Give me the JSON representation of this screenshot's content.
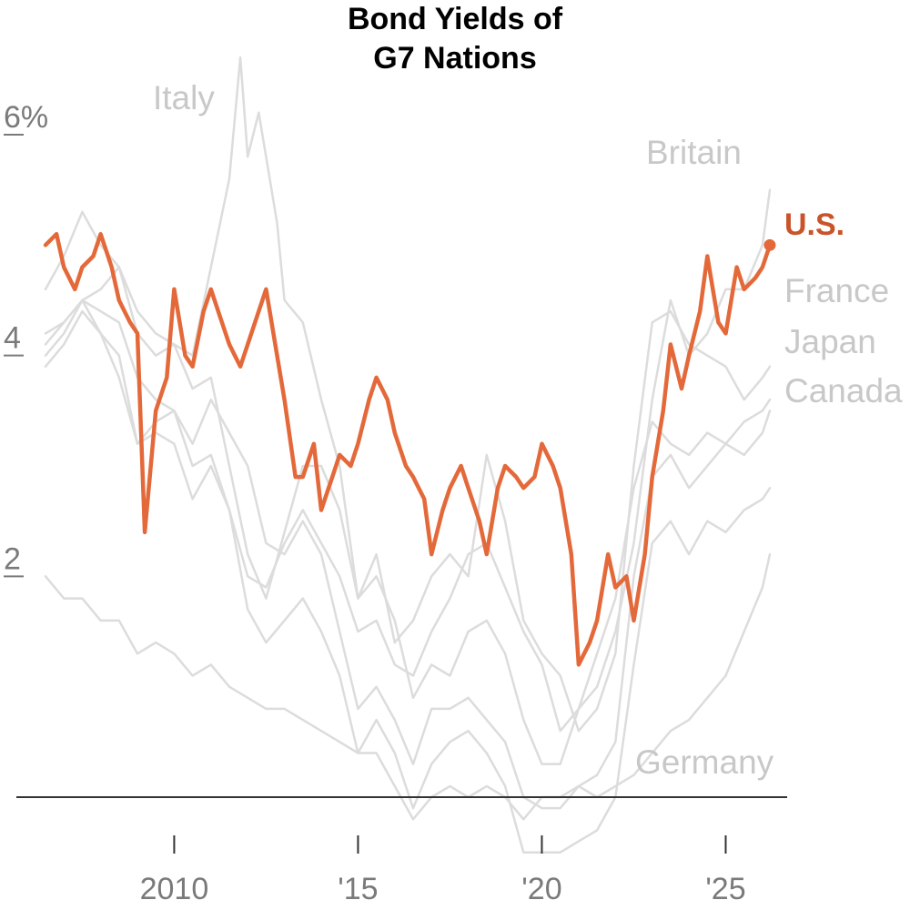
{
  "chart_data": {
    "type": "line",
    "title_lines": [
      "Bond Yields of",
      "G7 Nations"
    ],
    "xlabel": "",
    "ylabel": "",
    "x_range": [
      2006.5,
      2026.3
    ],
    "ylim": [
      -0.6,
      6.9
    ],
    "y_ticks": [
      {
        "value": 2,
        "label": "2"
      },
      {
        "value": 4,
        "label": "4"
      },
      {
        "value": 6,
        "label": "6%"
      }
    ],
    "x_ticks": [
      {
        "value": 2010,
        "label": "2010"
      },
      {
        "value": 2015,
        "label": "'15"
      },
      {
        "value": 2020,
        "label": "'20"
      },
      {
        "value": 2025,
        "label": "'25"
      }
    ],
    "baseline_value": 0,
    "grid": false,
    "legend": "direct labels at series ends",
    "colors": {
      "highlight": "#e4693a",
      "highlight_text": "#c9542a",
      "others": "#dcdcdc",
      "others_text": "#c8c8c8",
      "axis": "#333333"
    },
    "series": [
      {
        "name": "U.S.",
        "highlight": true,
        "x": [
          2006.5,
          2006.8,
          2007.0,
          2007.3,
          2007.5,
          2007.8,
          2008.0,
          2008.3,
          2008.5,
          2008.8,
          2009.0,
          2009.2,
          2009.5,
          2009.8,
          2010.0,
          2010.3,
          2010.5,
          2010.8,
          2011.0,
          2011.3,
          2011.5,
          2011.8,
          2012.0,
          2012.3,
          2012.5,
          2012.8,
          2013.0,
          2013.3,
          2013.5,
          2013.8,
          2014.0,
          2014.3,
          2014.5,
          2014.8,
          2015.0,
          2015.3,
          2015.5,
          2015.8,
          2016.0,
          2016.3,
          2016.5,
          2016.8,
          2017.0,
          2017.3,
          2017.5,
          2017.8,
          2018.0,
          2018.3,
          2018.5,
          2018.8,
          2019.0,
          2019.3,
          2019.5,
          2019.8,
          2020.0,
          2020.3,
          2020.5,
          2020.8,
          2021.0,
          2021.3,
          2021.5,
          2021.8,
          2022.0,
          2022.3,
          2022.5,
          2022.8,
          2023.0,
          2023.3,
          2023.5,
          2023.8,
          2024.0,
          2024.3,
          2024.5,
          2024.8,
          2025.0,
          2025.3,
          2025.5,
          2025.8,
          2026.0,
          2026.2
        ],
        "values": [
          5.0,
          5.1,
          4.8,
          4.6,
          4.8,
          4.9,
          5.1,
          4.8,
          4.5,
          4.3,
          4.2,
          2.4,
          3.5,
          3.8,
          4.6,
          4.0,
          3.9,
          4.4,
          4.6,
          4.3,
          4.1,
          3.9,
          4.1,
          4.4,
          4.6,
          4.0,
          3.6,
          2.9,
          2.9,
          3.2,
          2.6,
          2.9,
          3.1,
          3.0,
          3.2,
          3.6,
          3.8,
          3.6,
          3.3,
          3.0,
          2.9,
          2.7,
          2.2,
          2.6,
          2.8,
          3.0,
          2.8,
          2.5,
          2.2,
          2.8,
          3.0,
          2.9,
          2.8,
          2.9,
          3.2,
          3.0,
          2.8,
          2.2,
          1.2,
          1.4,
          1.6,
          2.2,
          1.9,
          2.0,
          1.6,
          2.2,
          2.9,
          3.5,
          4.1,
          3.7,
          4.0,
          4.4,
          4.9,
          4.3,
          4.2,
          4.8,
          4.6,
          4.7,
          4.8,
          5.0
        ]
      },
      {
        "name": "Italy",
        "highlight": false,
        "x": [
          2006.5,
          2007.0,
          2007.5,
          2008.0,
          2008.5,
          2009.0,
          2009.5,
          2010.0,
          2010.5,
          2011.0,
          2011.5,
          2011.8,
          2012.0,
          2012.3,
          2012.5,
          2012.8,
          2013.0,
          2013.5,
          2014.0,
          2014.5,
          2015.0,
          2015.5,
          2016.0,
          2016.5,
          2017.0,
          2017.5,
          2018.0,
          2018.5,
          2019.0,
          2019.5,
          2020.0,
          2020.5,
          2021.0,
          2021.5,
          2022.0,
          2022.5,
          2023.0,
          2023.5,
          2024.0,
          2024.5,
          2025.0,
          2025.5,
          2026.0,
          2026.2
        ],
        "values": [
          4.1,
          4.3,
          4.5,
          4.6,
          4.8,
          4.4,
          4.2,
          4.1,
          4.0,
          4.8,
          5.6,
          6.7,
          5.8,
          6.2,
          5.8,
          5.2,
          4.5,
          4.3,
          3.6,
          3.0,
          1.8,
          2.2,
          1.4,
          1.6,
          2.0,
          2.2,
          2.0,
          3.1,
          2.5,
          1.6,
          1.3,
          1.1,
          0.6,
          0.8,
          1.3,
          3.0,
          4.3,
          4.4,
          4.1,
          4.0,
          3.9,
          3.6,
          3.8,
          3.9
        ]
      },
      {
        "name": "Britain",
        "highlight": false,
        "x": [
          2006.5,
          2007.0,
          2007.5,
          2008.0,
          2008.5,
          2009.0,
          2009.5,
          2010.0,
          2010.5,
          2011.0,
          2011.5,
          2012.0,
          2012.5,
          2013.0,
          2013.5,
          2014.0,
          2014.5,
          2015.0,
          2015.5,
          2016.0,
          2016.5,
          2017.0,
          2017.5,
          2018.0,
          2018.5,
          2019.0,
          2019.5,
          2020.0,
          2020.5,
          2021.0,
          2021.5,
          2022.0,
          2022.5,
          2023.0,
          2023.5,
          2024.0,
          2024.5,
          2025.0,
          2025.5,
          2026.0,
          2026.2
        ],
        "values": [
          4.6,
          4.9,
          5.3,
          5.0,
          4.8,
          4.2,
          4.0,
          4.1,
          3.7,
          3.8,
          3.0,
          2.2,
          1.8,
          2.4,
          3.0,
          3.0,
          2.6,
          1.8,
          2.0,
          1.6,
          0.9,
          1.2,
          1.1,
          1.5,
          1.6,
          1.3,
          0.7,
          0.3,
          0.3,
          0.8,
          1.0,
          1.5,
          2.3,
          3.6,
          4.5,
          4.0,
          4.2,
          4.6,
          4.6,
          5.0,
          5.5
        ]
      },
      {
        "name": "France",
        "highlight": false,
        "x": [
          2006.5,
          2007.0,
          2007.5,
          2008.0,
          2008.5,
          2009.0,
          2009.5,
          2010.0,
          2010.5,
          2011.0,
          2011.5,
          2012.0,
          2012.5,
          2013.0,
          2013.5,
          2014.0,
          2014.5,
          2015.0,
          2015.5,
          2016.0,
          2016.5,
          2017.0,
          2017.5,
          2018.0,
          2018.5,
          2019.0,
          2019.5,
          2020.0,
          2020.5,
          2021.0,
          2021.5,
          2022.0,
          2022.5,
          2023.0,
          2023.5,
          2024.0,
          2024.5,
          2025.0,
          2025.5,
          2026.0,
          2026.2
        ],
        "values": [
          4.0,
          4.2,
          4.5,
          4.4,
          4.3,
          3.8,
          3.6,
          3.5,
          3.2,
          3.6,
          3.3,
          3.0,
          2.3,
          2.2,
          2.5,
          2.2,
          1.5,
          0.8,
          1.0,
          0.7,
          0.3,
          0.8,
          0.8,
          0.9,
          0.7,
          0.5,
          0.0,
          -0.1,
          -0.1,
          0.1,
          0.2,
          0.5,
          2.0,
          2.9,
          3.1,
          2.8,
          3.0,
          3.2,
          3.4,
          3.5,
          3.6
        ]
      },
      {
        "name": "Japan",
        "highlight": false,
        "x": [
          2006.5,
          2007.0,
          2007.5,
          2008.0,
          2008.5,
          2009.0,
          2009.5,
          2010.0,
          2010.5,
          2011.0,
          2011.5,
          2012.0,
          2012.5,
          2013.0,
          2013.5,
          2014.0,
          2014.5,
          2015.0,
          2015.5,
          2016.0,
          2016.5,
          2017.0,
          2017.5,
          2018.0,
          2018.5,
          2019.0,
          2019.5,
          2020.0,
          2020.5,
          2021.0,
          2021.5,
          2022.0,
          2022.5,
          2023.0,
          2023.5,
          2024.0,
          2024.5,
          2025.0,
          2025.5,
          2026.0,
          2026.2
        ],
        "values": [
          2.0,
          1.8,
          1.8,
          1.6,
          1.6,
          1.3,
          1.4,
          1.3,
          1.1,
          1.2,
          1.0,
          0.9,
          0.8,
          0.8,
          0.7,
          0.6,
          0.5,
          0.4,
          0.4,
          0.1,
          -0.2,
          0.0,
          0.1,
          0.0,
          0.1,
          0.0,
          -0.2,
          0.0,
          0.0,
          0.1,
          0.0,
          0.1,
          0.2,
          0.4,
          0.6,
          0.7,
          0.9,
          1.1,
          1.5,
          1.9,
          2.2
        ]
      },
      {
        "name": "Canada",
        "highlight": false,
        "x": [
          2006.5,
          2007.0,
          2007.5,
          2008.0,
          2008.5,
          2009.0,
          2009.5,
          2010.0,
          2010.5,
          2011.0,
          2011.5,
          2012.0,
          2012.5,
          2013.0,
          2013.5,
          2014.0,
          2014.5,
          2015.0,
          2015.5,
          2016.0,
          2016.5,
          2017.0,
          2017.5,
          2018.0,
          2018.5,
          2019.0,
          2019.5,
          2020.0,
          2020.5,
          2021.0,
          2021.5,
          2022.0,
          2022.5,
          2023.0,
          2023.5,
          2024.0,
          2024.5,
          2025.0,
          2025.5,
          2026.0,
          2026.2
        ],
        "values": [
          4.2,
          4.3,
          4.5,
          4.2,
          3.8,
          3.2,
          3.4,
          3.5,
          3.0,
          3.1,
          2.6,
          2.0,
          1.9,
          2.3,
          2.6,
          2.3,
          2.0,
          1.5,
          1.6,
          1.2,
          1.1,
          1.5,
          1.8,
          2.2,
          2.3,
          1.9,
          1.5,
          1.2,
          0.6,
          0.8,
          1.3,
          1.8,
          2.8,
          3.4,
          3.2,
          3.1,
          3.3,
          3.2,
          3.1,
          3.3,
          3.5
        ]
      },
      {
        "name": "Germany",
        "highlight": false,
        "x": [
          2006.5,
          2007.0,
          2007.5,
          2008.0,
          2008.5,
          2009.0,
          2009.5,
          2010.0,
          2010.5,
          2011.0,
          2011.5,
          2012.0,
          2012.5,
          2013.0,
          2013.5,
          2014.0,
          2014.5,
          2015.0,
          2015.5,
          2016.0,
          2016.5,
          2017.0,
          2017.5,
          2018.0,
          2018.5,
          2019.0,
          2019.5,
          2020.0,
          2020.5,
          2021.0,
          2021.5,
          2022.0,
          2022.5,
          2023.0,
          2023.5,
          2024.0,
          2024.5,
          2025.0,
          2025.5,
          2026.0,
          2026.2
        ],
        "values": [
          3.9,
          4.1,
          4.4,
          4.2,
          4.0,
          3.2,
          3.3,
          3.2,
          2.7,
          3.0,
          2.6,
          1.7,
          1.4,
          1.6,
          1.8,
          1.5,
          1.1,
          0.4,
          0.7,
          0.4,
          -0.1,
          0.3,
          0.5,
          0.6,
          0.4,
          0.1,
          -0.5,
          -0.5,
          -0.5,
          -0.4,
          -0.3,
          0.0,
          1.2,
          2.3,
          2.5,
          2.2,
          2.5,
          2.4,
          2.6,
          2.7,
          2.8
        ]
      }
    ],
    "labels": {
      "Italy": "Italy",
      "Britain": "Britain",
      "U.S.": "U.S.",
      "France": "France",
      "Japan": "Japan",
      "Canada": "Canada",
      "Germany": "Germany"
    }
  }
}
